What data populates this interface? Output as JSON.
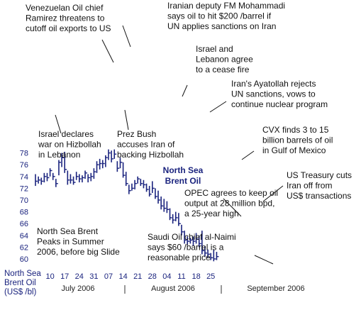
{
  "chart_data": {
    "type": "ohlc",
    "title": "",
    "xlabel": "",
    "ylabel": "North Sea Brent Oil (US$ /bl)",
    "ylabel_lines": [
      "North Sea",
      "Brent Oil",
      "(US$ /bl)"
    ],
    "ylim": [
      59.5,
      79.5
    ],
    "y_ticks": [
      60,
      62,
      64,
      66,
      68,
      70,
      72,
      74,
      76,
      78
    ],
    "x_ticks": [
      "10",
      "17",
      "24",
      "31",
      "07",
      "14",
      "21",
      "28",
      "04",
      "11",
      "18",
      "25"
    ],
    "months": [
      "July 2006",
      "August 2006",
      "September 2006"
    ],
    "series_label": [
      "North Sea",
      "Brent Oil"
    ],
    "colors": {
      "bars": "#1a237e",
      "label": "#1a237e",
      "tick_labels": "#1a237e",
      "annotations": "#111111",
      "leaders": "#111111"
    },
    "bars": [
      {
        "date": "2006-07-03",
        "high": 74.4,
        "low": 72.4,
        "close": 73.2
      },
      {
        "date": "2006-07-04",
        "high": 74.0,
        "low": 72.8,
        "close": 73.4
      },
      {
        "date": "2006-07-05",
        "high": 73.8,
        "low": 72.6,
        "close": 73.2
      },
      {
        "date": "2006-07-06",
        "high": 74.6,
        "low": 73.0,
        "close": 74.0
      },
      {
        "date": "2006-07-07",
        "high": 74.6,
        "low": 73.2,
        "close": 73.8
      },
      {
        "date": "2006-07-10",
        "high": 75.4,
        "low": 74.0,
        "close": 75.0
      },
      {
        "date": "2006-07-11",
        "high": 74.6,
        "low": 73.4,
        "close": 74.0
      },
      {
        "date": "2006-07-12",
        "high": 73.6,
        "low": 72.2,
        "close": 72.8
      },
      {
        "date": "2006-07-13",
        "high": 76.8,
        "low": 74.2,
        "close": 76.4
      },
      {
        "date": "2006-07-14",
        "high": 78.0,
        "low": 75.6,
        "close": 77.2
      },
      {
        "date": "2006-07-17",
        "high": 78.2,
        "low": 74.6,
        "close": 75.2
      },
      {
        "date": "2006-07-18",
        "high": 75.0,
        "low": 72.6,
        "close": 73.4
      },
      {
        "date": "2006-07-19",
        "high": 74.4,
        "low": 72.8,
        "close": 73.4
      },
      {
        "date": "2006-07-20",
        "high": 74.0,
        "low": 72.6,
        "close": 73.0
      },
      {
        "date": "2006-07-21",
        "high": 74.8,
        "low": 73.4,
        "close": 74.0
      },
      {
        "date": "2006-07-24",
        "high": 74.4,
        "low": 73.0,
        "close": 73.6
      },
      {
        "date": "2006-07-25",
        "high": 74.2,
        "low": 73.0,
        "close": 73.8
      },
      {
        "date": "2006-07-26",
        "high": 75.0,
        "low": 73.6,
        "close": 74.6
      },
      {
        "date": "2006-07-27",
        "high": 74.4,
        "low": 73.0,
        "close": 73.8
      },
      {
        "date": "2006-07-28",
        "high": 74.6,
        "low": 73.2,
        "close": 74.0
      },
      {
        "date": "2006-07-31",
        "high": 75.4,
        "low": 73.6,
        "close": 74.8
      },
      {
        "date": "2006-08-01",
        "high": 76.6,
        "low": 74.6,
        "close": 76.0
      },
      {
        "date": "2006-08-02",
        "high": 77.0,
        "low": 75.2,
        "close": 76.2
      },
      {
        "date": "2006-08-03",
        "high": 76.8,
        "low": 75.4,
        "close": 76.2
      },
      {
        "date": "2006-08-04",
        "high": 77.6,
        "low": 75.6,
        "close": 77.2
      },
      {
        "date": "2006-08-07",
        "high": 78.6,
        "low": 76.8,
        "close": 78.0
      },
      {
        "date": "2006-08-08",
        "high": 78.4,
        "low": 76.4,
        "close": 77.0
      },
      {
        "date": "2006-08-09",
        "high": 78.6,
        "low": 77.0,
        "close": 77.8
      },
      {
        "date": "2006-08-10",
        "high": 76.6,
        "low": 74.8,
        "close": 75.4
      },
      {
        "date": "2006-08-11",
        "high": 77.2,
        "low": 75.4,
        "close": 76.4
      },
      {
        "date": "2006-08-14",
        "high": 76.4,
        "low": 73.8,
        "close": 74.2
      },
      {
        "date": "2006-08-15",
        "high": 74.8,
        "low": 72.4,
        "close": 72.8
      },
      {
        "date": "2006-08-16",
        "high": 72.6,
        "low": 71.0,
        "close": 71.6
      },
      {
        "date": "2006-08-17",
        "high": 72.8,
        "low": 71.6,
        "close": 72.0
      },
      {
        "date": "2006-08-18",
        "high": 73.4,
        "low": 71.8,
        "close": 72.8
      },
      {
        "date": "2006-08-21",
        "high": 74.0,
        "low": 72.8,
        "close": 73.6
      },
      {
        "date": "2006-08-22",
        "high": 73.6,
        "low": 72.4,
        "close": 72.8
      },
      {
        "date": "2006-08-23",
        "high": 73.4,
        "low": 72.0,
        "close": 72.6
      },
      {
        "date": "2006-08-24",
        "high": 72.8,
        "low": 71.4,
        "close": 71.8
      },
      {
        "date": "2006-08-25",
        "high": 72.4,
        "low": 70.6,
        "close": 71.0
      },
      {
        "date": "2006-08-28",
        "high": 73.2,
        "low": 71.2,
        "close": 72.0
      },
      {
        "date": "2006-08-29",
        "high": 72.0,
        "low": 70.2,
        "close": 70.6
      },
      {
        "date": "2006-08-30",
        "high": 71.6,
        "low": 69.4,
        "close": 70.0
      },
      {
        "date": "2006-08-31",
        "high": 70.6,
        "low": 68.4,
        "close": 69.0
      },
      {
        "date": "2006-09-01",
        "high": 70.2,
        "low": 68.0,
        "close": 68.6
      },
      {
        "date": "2006-09-04",
        "high": 69.8,
        "low": 67.8,
        "close": 68.4
      },
      {
        "date": "2006-09-05",
        "high": 68.6,
        "low": 66.6,
        "close": 67.0
      },
      {
        "date": "2006-09-06",
        "high": 67.6,
        "low": 66.0,
        "close": 66.6
      },
      {
        "date": "2006-09-07",
        "high": 68.0,
        "low": 66.4,
        "close": 67.0
      },
      {
        "date": "2006-09-08",
        "high": 67.8,
        "low": 65.6,
        "close": 66.0
      },
      {
        "date": "2006-09-11",
        "high": 65.8,
        "low": 64.0,
        "close": 64.6
      },
      {
        "date": "2006-09-12",
        "high": 64.8,
        "low": 62.6,
        "close": 63.2
      },
      {
        "date": "2006-09-13",
        "high": 63.8,
        "low": 62.4,
        "close": 63.0
      },
      {
        "date": "2006-09-14",
        "high": 63.6,
        "low": 62.6,
        "close": 63.2
      },
      {
        "date": "2006-09-15",
        "high": 63.8,
        "low": 62.2,
        "close": 63.0
      },
      {
        "date": "2006-09-18",
        "high": 64.4,
        "low": 62.6,
        "close": 63.4
      },
      {
        "date": "2006-09-19",
        "high": 64.0,
        "low": 62.0,
        "close": 62.6
      },
      {
        "date": "2006-09-20",
        "high": 64.8,
        "low": 60.8,
        "close": 61.4
      },
      {
        "date": "2006-09-21",
        "high": 62.2,
        "low": 60.4,
        "close": 61.0
      },
      {
        "date": "2006-09-22",
        "high": 61.6,
        "low": 60.2,
        "close": 60.8
      },
      {
        "date": "2006-09-25",
        "high": 61.0,
        "low": 59.8,
        "close": 60.2
      },
      {
        "date": "2006-09-26",
        "high": 61.6,
        "low": 59.6,
        "close": 60.0
      },
      {
        "date": "2006-09-27",
        "high": 61.2,
        "low": 59.8,
        "close": 60.4
      }
    ],
    "annotations": [
      {
        "lines": [
          "Venezuelan Oil chief",
          "Ramirez threatens to",
          "cutoff oil exports to US"
        ]
      },
      {
        "lines": [
          "Iranian deputy FM Mohammadi",
          "says oil to hit $200 /barrel if",
          "UN applies sanctions on Iran"
        ]
      },
      {
        "lines": [
          "Israel and",
          "Lebanon agree",
          "to a cease fire"
        ]
      },
      {
        "lines": [
          "Iran's Ayatollah rejects",
          "UN sanctions, vows to",
          "continue nuclear program"
        ]
      },
      {
        "lines": [
          "Israel declares",
          "war on Hizbollah",
          "in Lebanon"
        ]
      },
      {
        "lines": [
          "Prez Bush",
          "accuses Iran of",
          "backing Hizbollah"
        ]
      },
      {
        "lines": [
          "CVX finds 3 to 15",
          "billion barrels of oil",
          "in Gulf of Mexico"
        ]
      },
      {
        "lines": [
          "US Treasury cuts",
          "Iran off from",
          "US$ transactions"
        ]
      },
      {
        "lines": [
          "OPEC agrees to keep oil",
          "output at 28 million bpd,",
          "a 25-year high"
        ]
      },
      {
        "lines": [
          "North Sea Brent",
          "Peaks in Summer",
          "2006, before big Slide"
        ]
      },
      {
        "lines": [
          "Saudi Oil chief al-Naimi",
          "says $60 /barrel is a",
          "reasonable price"
        ]
      }
    ]
  }
}
